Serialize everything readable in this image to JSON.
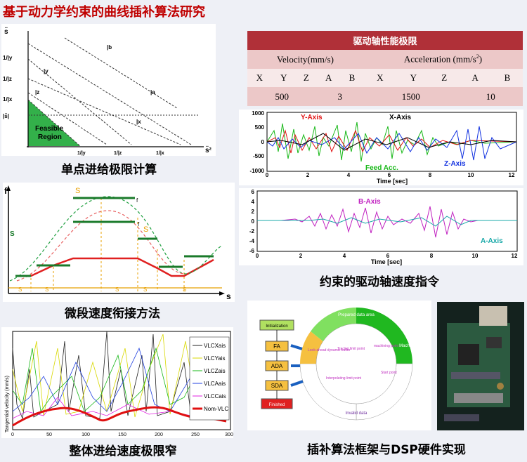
{
  "title": "基于动力学约束的曲线插补算法研究",
  "captions": {
    "c1": "单点进给极限计算",
    "c2": "微段速度衔接方法",
    "c3": "整体进给速度极限窄",
    "c4": "约束的驱动轴速度指令",
    "c5": "插补算法框架与DSP硬件实现"
  },
  "table": {
    "header": "驱动轴性能极限",
    "velocity_label": "Velocity(mm/s)",
    "accel_label": "Acceleration (mm/s",
    "accel_sup": "2",
    "accel_close": ")",
    "axes": [
      "X",
      "Y",
      "Z",
      "A",
      "B",
      "X",
      "Y",
      "Z",
      "A",
      "B"
    ],
    "v_xyz": "500",
    "v_ab": "3",
    "a_xyz": "1500",
    "a_ab": "10"
  },
  "fig1": {
    "yaxis": "s̈",
    "xaxis": "s̈²",
    "y_ticks": [
      "1/|y",
      "1/|z",
      "1/|x"
    ],
    "lines": [
      "|b",
      "|y",
      "|z",
      "|a",
      "|x"
    ],
    "feasible": [
      "Feasible",
      "Region"
    ],
    "s_label": "|s̈|",
    "x_ticks": [
      "1/|y",
      "1/|z",
      "1/|x"
    ]
  },
  "fig2": {
    "f": "f",
    "s": "s",
    "sc": "S",
    "sv": "S",
    "smax": "S",
    "fb": "f",
    "fk": "f",
    "segs": [
      "S",
      "S",
      "S",
      "S",
      "S"
    ],
    "nums": [
      "1",
      "2",
      "3",
      "1",
      "2",
      "3",
      "1",
      "2",
      "3",
      "1",
      "2",
      "3"
    ]
  },
  "fig3": {
    "legend": [
      "VLCXais",
      "VLCYais",
      "VLCZais",
      "VLCAais",
      "VLCCais",
      "Nom-VLC"
    ],
    "ylabel": "Tangential velocity (mm/s)",
    "xticks": [
      "0",
      "50",
      "100",
      "150",
      "200",
      "250",
      "300"
    ]
  },
  "fig4": {
    "yticks": [
      "1000",
      "500",
      "0",
      "-500",
      "-1000"
    ],
    "xticks": [
      "0",
      "2",
      "4",
      "6",
      "8",
      "10",
      "12"
    ],
    "xlabel": "Time [sec]",
    "labels": [
      "Y-Axis",
      "X-Axis",
      "Feed Acc.",
      "Z-Axis"
    ]
  },
  "fig5": {
    "yticks": [
      "6",
      "4",
      "2",
      "0",
      "-2",
      "-4",
      "-6"
    ],
    "xticks": [
      "0",
      "2",
      "4",
      "6",
      "8",
      "10",
      "12"
    ],
    "xlabel": "Time [sec]",
    "labels": [
      "B-Axis",
      "A-Axis"
    ]
  },
  "fig6": {
    "boxes": [
      "Initialization",
      "FA",
      "ADA",
      "SDA",
      "Finished"
    ],
    "ring": [
      "Prepared data area",
      "Machined area",
      "Invalid data"
    ],
    "texts": [
      "Look-ahead dynamic buffer",
      "Tracing limit point",
      "machining point",
      "Start point",
      "Interpolating limit point"
    ]
  }
}
